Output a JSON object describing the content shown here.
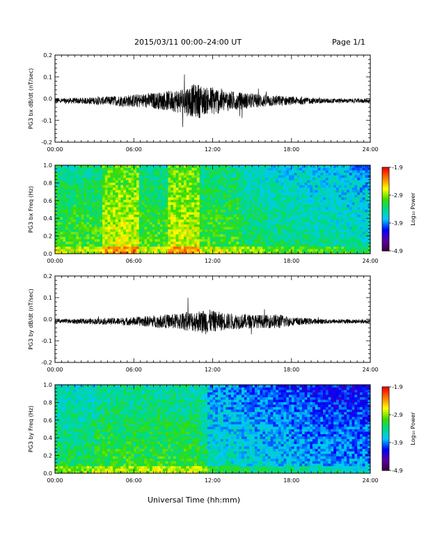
{
  "header": {
    "title": "2015/03/11  00:00–24:00 UT",
    "page": "Page 1/1"
  },
  "footer": {
    "xlabel": "Universal Time (hh:mm)"
  },
  "chart_data": [
    {
      "type": "line",
      "ylabel": "PG3 bx dB/dt (nT/sec)",
      "xlim": [
        "00:00",
        "24:00"
      ],
      "ylim": [
        -0.2,
        0.2
      ],
      "x_ticks": [
        "00:00",
        "06:00",
        "12:00",
        "18:00",
        "24:00"
      ],
      "y_ticks": [
        "-0.2",
        "-0.1",
        "0.0",
        "0.1",
        "0.2"
      ],
      "x_hours": [
        0,
        2,
        4,
        6,
        8,
        9,
        10,
        11,
        11.5,
        12,
        13,
        14,
        16,
        18,
        20,
        22,
        24
      ],
      "amplitude": [
        0.012,
        0.014,
        0.02,
        0.03,
        0.04,
        0.05,
        0.07,
        0.08,
        0.06,
        0.07,
        0.05,
        0.04,
        0.03,
        0.02,
        0.012,
        0.01,
        0.01
      ],
      "series_color": "#000000"
    },
    {
      "type": "heatmap",
      "ylabel": "PG3 bx Freq (Hz)",
      "xlim": [
        "00:00",
        "24:00"
      ],
      "ylim": [
        0.0,
        1.0
      ],
      "x_ticks": [
        "00:00",
        "06:00",
        "12:00",
        "18:00",
        "24:00"
      ],
      "y_ticks": [
        "0.0",
        "0.2",
        "0.4",
        "0.6",
        "0.8",
        "1.0"
      ],
      "colorbar": {
        "label": "Log₁₀ Power",
        "ticks": [
          "-1.9",
          "-2.9",
          "-3.9",
          "-4.9"
        ],
        "range": [
          -4.9,
          -1.9
        ]
      }
    },
    {
      "type": "line",
      "ylabel": "PG3 by dB/dt (nT/sec)",
      "xlim": [
        "00:00",
        "24:00"
      ],
      "ylim": [
        -0.2,
        0.2
      ],
      "x_ticks": [
        "00:00",
        "06:00",
        "12:00",
        "18:00",
        "24:00"
      ],
      "y_ticks": [
        "-0.2",
        "-0.1",
        "0.0",
        "0.1",
        "0.2"
      ],
      "x_hours": [
        0,
        2,
        4,
        6,
        8,
        9,
        10,
        11,
        11.5,
        12,
        13,
        14,
        16,
        17,
        18,
        20,
        22,
        24
      ],
      "amplitude": [
        0.01,
        0.012,
        0.015,
        0.02,
        0.03,
        0.035,
        0.045,
        0.05,
        0.06,
        0.05,
        0.04,
        0.035,
        0.03,
        0.035,
        0.02,
        0.012,
        0.01,
        0.01
      ],
      "series_color": "#000000"
    },
    {
      "type": "heatmap",
      "ylabel": "PG3 by Freq (Hz)",
      "xlim": [
        "00:00",
        "24:00"
      ],
      "ylim": [
        0.0,
        1.0
      ],
      "x_ticks": [
        "00:00",
        "06:00",
        "12:00",
        "18:00",
        "24:00"
      ],
      "y_ticks": [
        "0.0",
        "0.2",
        "0.4",
        "0.6",
        "0.8",
        "1.0"
      ],
      "colorbar": {
        "label": "Log₁₀ Power",
        "ticks": [
          "-1.9",
          "-2.9",
          "-3.9",
          "-4.9"
        ],
        "range": [
          -4.9,
          -1.9
        ]
      }
    }
  ]
}
